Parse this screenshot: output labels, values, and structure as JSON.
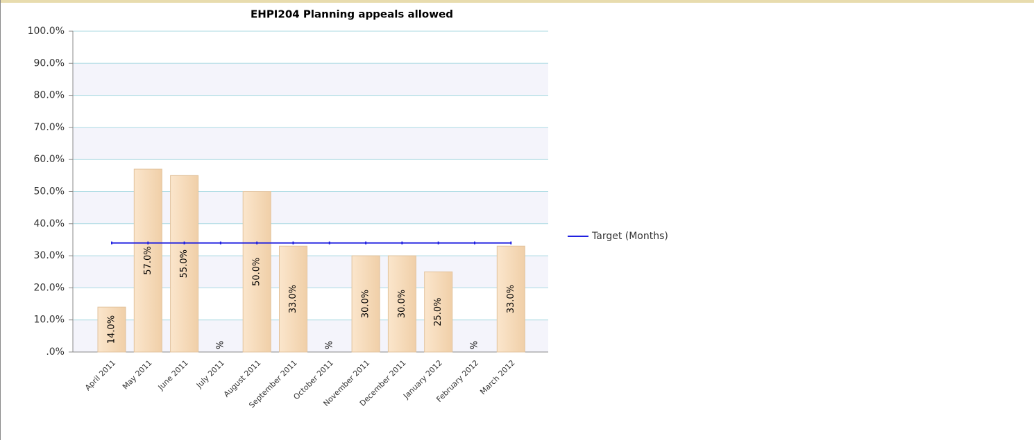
{
  "chart_data": {
    "type": "bar",
    "title": "EHPI204 Planning appeals allowed",
    "categories": [
      "April 2011",
      "May 2011",
      "June 2011",
      "July 2011",
      "August 2011",
      "September 2011",
      "October 2011",
      "November 2011",
      "December 2011",
      "January 2012",
      "February 2012",
      "March 2012"
    ],
    "values": [
      14,
      57,
      55,
      0,
      50,
      33,
      0,
      30,
      30,
      25,
      0,
      33
    ],
    "value_labels": [
      "14.0%",
      "57.0%",
      "55.0%",
      "%",
      "50.0%",
      "33.0%",
      "%",
      "30.0%",
      "30.0%",
      "25.0%",
      "%",
      "33.0%"
    ],
    "color": "#f6d9b5",
    "series": [
      {
        "name": "Target (Months)",
        "color": "#2020e0",
        "values": [
          34,
          34,
          34,
          34,
          34,
          34,
          34,
          34,
          34,
          34,
          34,
          34
        ]
      }
    ],
    "ylim": [
      0,
      100
    ],
    "yticks": [
      {
        "value": 0,
        "label": ".0%"
      },
      {
        "value": 10,
        "label": "10.0%"
      },
      {
        "value": 20,
        "label": "20.0%"
      },
      {
        "value": 30,
        "label": "30.0%"
      },
      {
        "value": 40,
        "label": "40.0%"
      },
      {
        "value": 50,
        "label": "50.0%"
      },
      {
        "value": 60,
        "label": "60.0%"
      },
      {
        "value": 70,
        "label": "70.0%"
      },
      {
        "value": 80,
        "label": "80.0%"
      },
      {
        "value": 90,
        "label": "90.0%"
      },
      {
        "value": 100,
        "label": "100.0%"
      }
    ],
    "grid": true,
    "legend": "right"
  }
}
